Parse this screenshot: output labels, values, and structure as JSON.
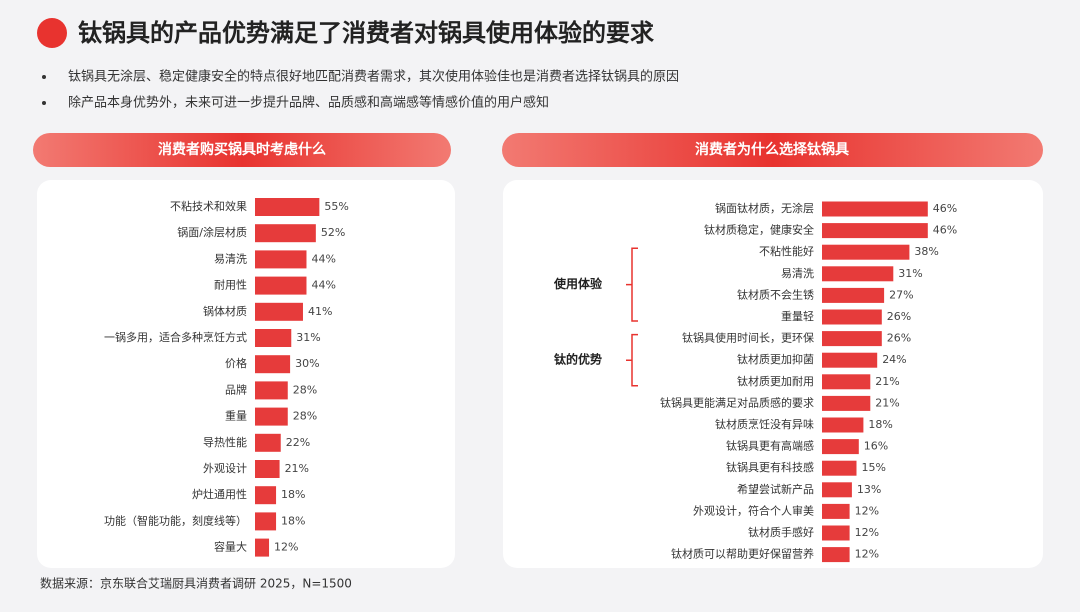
{
  "title": "钛锅具的产品优势满足了消费者对锅具使用体验的要求",
  "bullets": [
    "钛锅具无涂层、稳定健康安全的特点很好地匹配消费者需求，其次使用体验佳也是消费者选择钛锅具的原因",
    "除产品本身优势外，未来可进一步提升品牌、品质感和高端感等情感价值的用户感知"
  ],
  "source": "数据来源：京东联合艾瑞厨具消费者调研 2025，N=1500",
  "chart_data": [
    {
      "type": "hbar",
      "title": "消费者购买锅具时考虑什么",
      "color": "#e63b3b",
      "categories": [
        "不粘技术和效果",
        "锅面/涂层材质",
        "易清洗",
        "耐用性",
        "锅体材质",
        "一锅多用，适合多种烹饪方式",
        "价格",
        "品牌",
        "重量",
        "导热性能",
        "外观设计",
        "炉灶通用性",
        "功能（智能功能，刻度线等）",
        "容量大"
      ],
      "values": [
        55,
        52,
        44,
        44,
        41,
        31,
        30,
        28,
        28,
        22,
        21,
        18,
        18,
        12
      ],
      "value_labels": [
        "55%",
        "52%",
        "44%",
        "44%",
        "41%",
        "31%",
        "30%",
        "28%",
        "28%",
        "22%",
        "21%",
        "18%",
        "18%",
        "12%"
      ]
    },
    {
      "type": "hbar",
      "title": "消费者为什么选择钛锅具",
      "color": "#e63b3b",
      "categories": [
        "锅面钛材质，无涂层",
        "钛材质稳定，健康安全",
        "不粘性能好",
        "易清洗",
        "钛材质不会生锈",
        "重量轻",
        "钛锅具使用时间长，更环保",
        "钛材质更加抑菌",
        "钛材质更加耐用",
        "钛锅具更能满足对品质感的要求",
        "钛材质烹饪没有异味",
        "钛锅具更有高端感",
        "钛锅具更有科技感",
        "希望尝试新产品",
        "外观设计，符合个人审美",
        "钛材质手感好",
        "钛材质可以帮助更好保留营养"
      ],
      "values": [
        46,
        46,
        38,
        31,
        27,
        26,
        26,
        24,
        21,
        21,
        18,
        16,
        15,
        13,
        12,
        12,
        12
      ],
      "value_labels": [
        "46%",
        "46%",
        "38%",
        "31%",
        "27%",
        "26%",
        "26%",
        "24%",
        "21%",
        "21%",
        "18%",
        "16%",
        "15%",
        "13%",
        "12%",
        "12%",
        "12%"
      ],
      "groups": [
        {
          "label": "使用体验"
        },
        {
          "label": "钛的优势"
        }
      ]
    }
  ]
}
